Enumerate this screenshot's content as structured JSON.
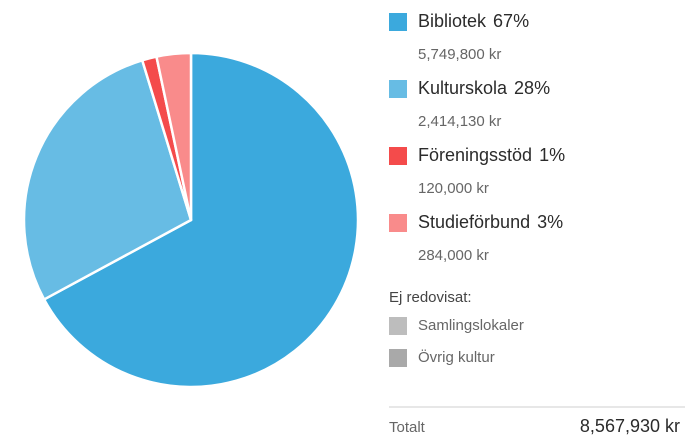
{
  "chart_data": {
    "type": "pie",
    "categories": [
      "Bibliotek",
      "Kulturskola",
      "Föreningsstöd",
      "Studieförbund"
    ],
    "values": [
      5749800,
      2414130,
      120000,
      284000
    ],
    "value_labels": [
      "5,749,800 kr",
      "2,414,130 kr",
      "120,000 kr",
      "284,000 kr"
    ],
    "percent_labels": [
      "67%",
      "28%",
      "1%",
      "3%"
    ],
    "colors": [
      "#3ba9dd",
      "#67bce4",
      "#f44b4b",
      "#f98b8b"
    ],
    "unreported_title": "Ej redovisat:",
    "unreported": [
      {
        "name": "Samlingslokaler",
        "color": "#bdbdbd"
      },
      {
        "name": "Övrig kultur",
        "color": "#a9a9a9"
      }
    ],
    "total_label": "Totalt",
    "total": 8567930,
    "total_value_label": "8,567,930 kr"
  }
}
